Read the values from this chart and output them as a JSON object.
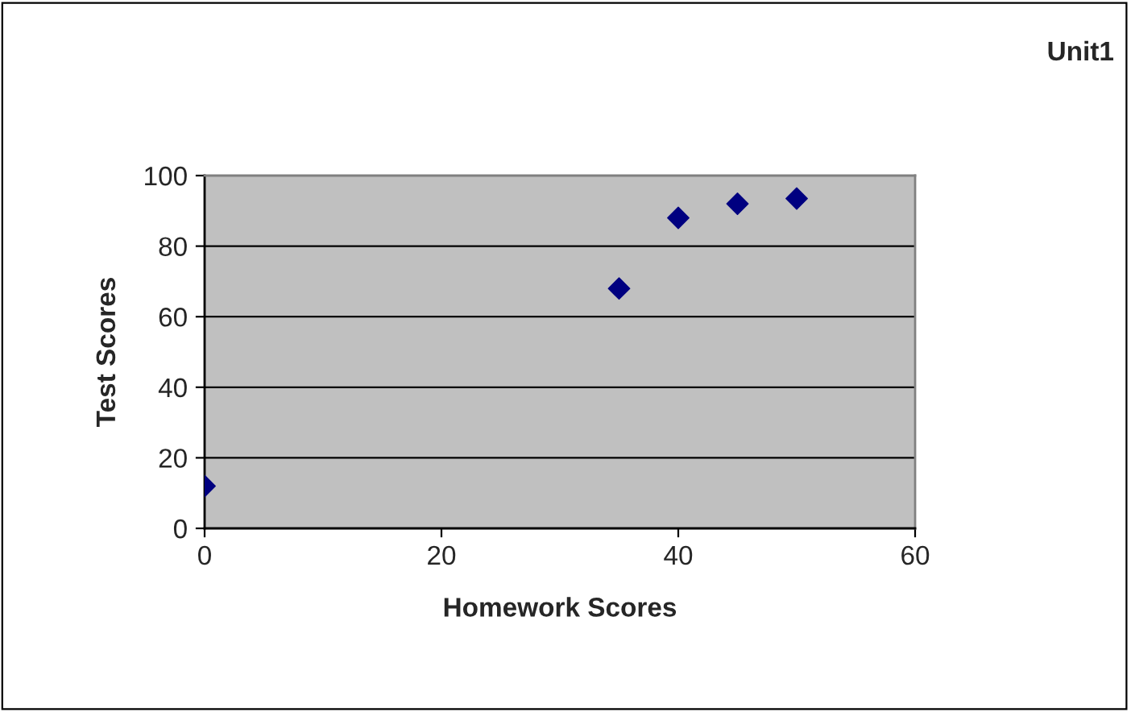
{
  "chart_data": {
    "type": "scatter",
    "title": "Unit1",
    "xlabel": "Homework Scores",
    "ylabel": "Test Scores",
    "x": [
      0,
      35,
      40,
      45,
      50
    ],
    "series": [
      {
        "color": "#000080",
        "values": [
          12,
          68,
          88,
          92,
          93.5
        ]
      }
    ],
    "xlim": [
      0,
      60
    ],
    "xticks": [
      0,
      20,
      40,
      60
    ],
    "ylim": [
      0,
      100
    ],
    "yticks": [
      0,
      20,
      40,
      60,
      80,
      100
    ],
    "grid": "y",
    "marker": "diamond"
  }
}
